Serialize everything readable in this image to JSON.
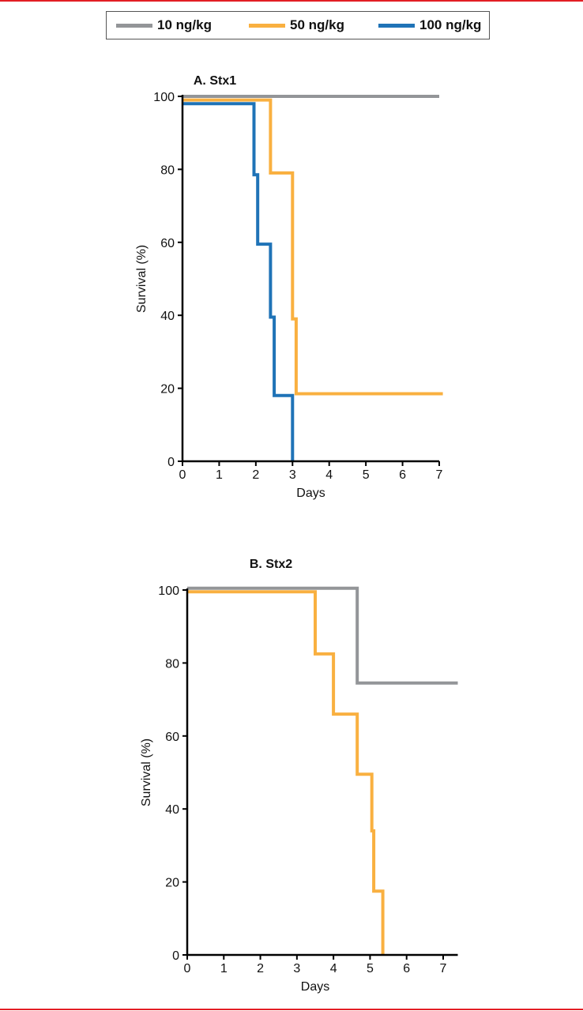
{
  "frame": {
    "accent_color": "#e31e24"
  },
  "legend": [
    {
      "label": "10 ng/kg",
      "color": "#939598"
    },
    {
      "label": "50 ng/kg",
      "color": "#f9b040"
    },
    {
      "label": "100 ng/kg",
      "color": "#1f73b7"
    }
  ],
  "chart_data": [
    {
      "type": "line",
      "step": true,
      "title": "A. Stx1",
      "xlabel": "Days",
      "ylabel": "Survival (%)",
      "xlim": [
        0,
        7
      ],
      "ylim": [
        0,
        100
      ],
      "xticks": [
        "0",
        "1",
        "2",
        "3",
        "4",
        "5",
        "6",
        "7"
      ],
      "yticks": [
        "0",
        "20",
        "40",
        "60",
        "80",
        "100"
      ],
      "grid": false,
      "series": [
        {
          "name": "10 ng/kg",
          "color": "#939598",
          "x": [
            0,
            7
          ],
          "y": [
            100,
            100
          ]
        },
        {
          "name": "50 ng/kg",
          "color": "#f9b040",
          "x": [
            0,
            2.4,
            3.0,
            3.1,
            7.1
          ],
          "y": [
            99,
            79,
            39,
            18.5,
            18.5
          ]
        },
        {
          "name": "100 ng/kg",
          "color": "#1f73b7",
          "x": [
            0,
            1.95,
            2.05,
            2.4,
            2.5,
            3.0
          ],
          "y": [
            98,
            78.5,
            59.5,
            39.5,
            18,
            0
          ]
        }
      ]
    },
    {
      "type": "line",
      "step": true,
      "title": "B. Stx2",
      "xlabel": "Days",
      "ylabel": "Survival (%)",
      "xlim": [
        0,
        7.4
      ],
      "ylim": [
        0,
        100
      ],
      "xticks": [
        "0",
        "1",
        "2",
        "3",
        "4",
        "5",
        "6",
        "7"
      ],
      "yticks": [
        "0",
        "20",
        "40",
        "60",
        "80",
        "100"
      ],
      "grid": false,
      "series": [
        {
          "name": "10 ng/kg",
          "color": "#939598",
          "x": [
            0,
            4.65,
            7.4
          ],
          "y": [
            100.5,
            74.5,
            74.5
          ]
        },
        {
          "name": "50 ng/kg",
          "color": "#f9b040",
          "x": [
            0,
            3.5,
            4.0,
            4.65,
            5.05,
            5.1,
            5.35
          ],
          "y": [
            99.5,
            82.5,
            66,
            49.5,
            34,
            17.5,
            0
          ]
        }
      ]
    }
  ]
}
